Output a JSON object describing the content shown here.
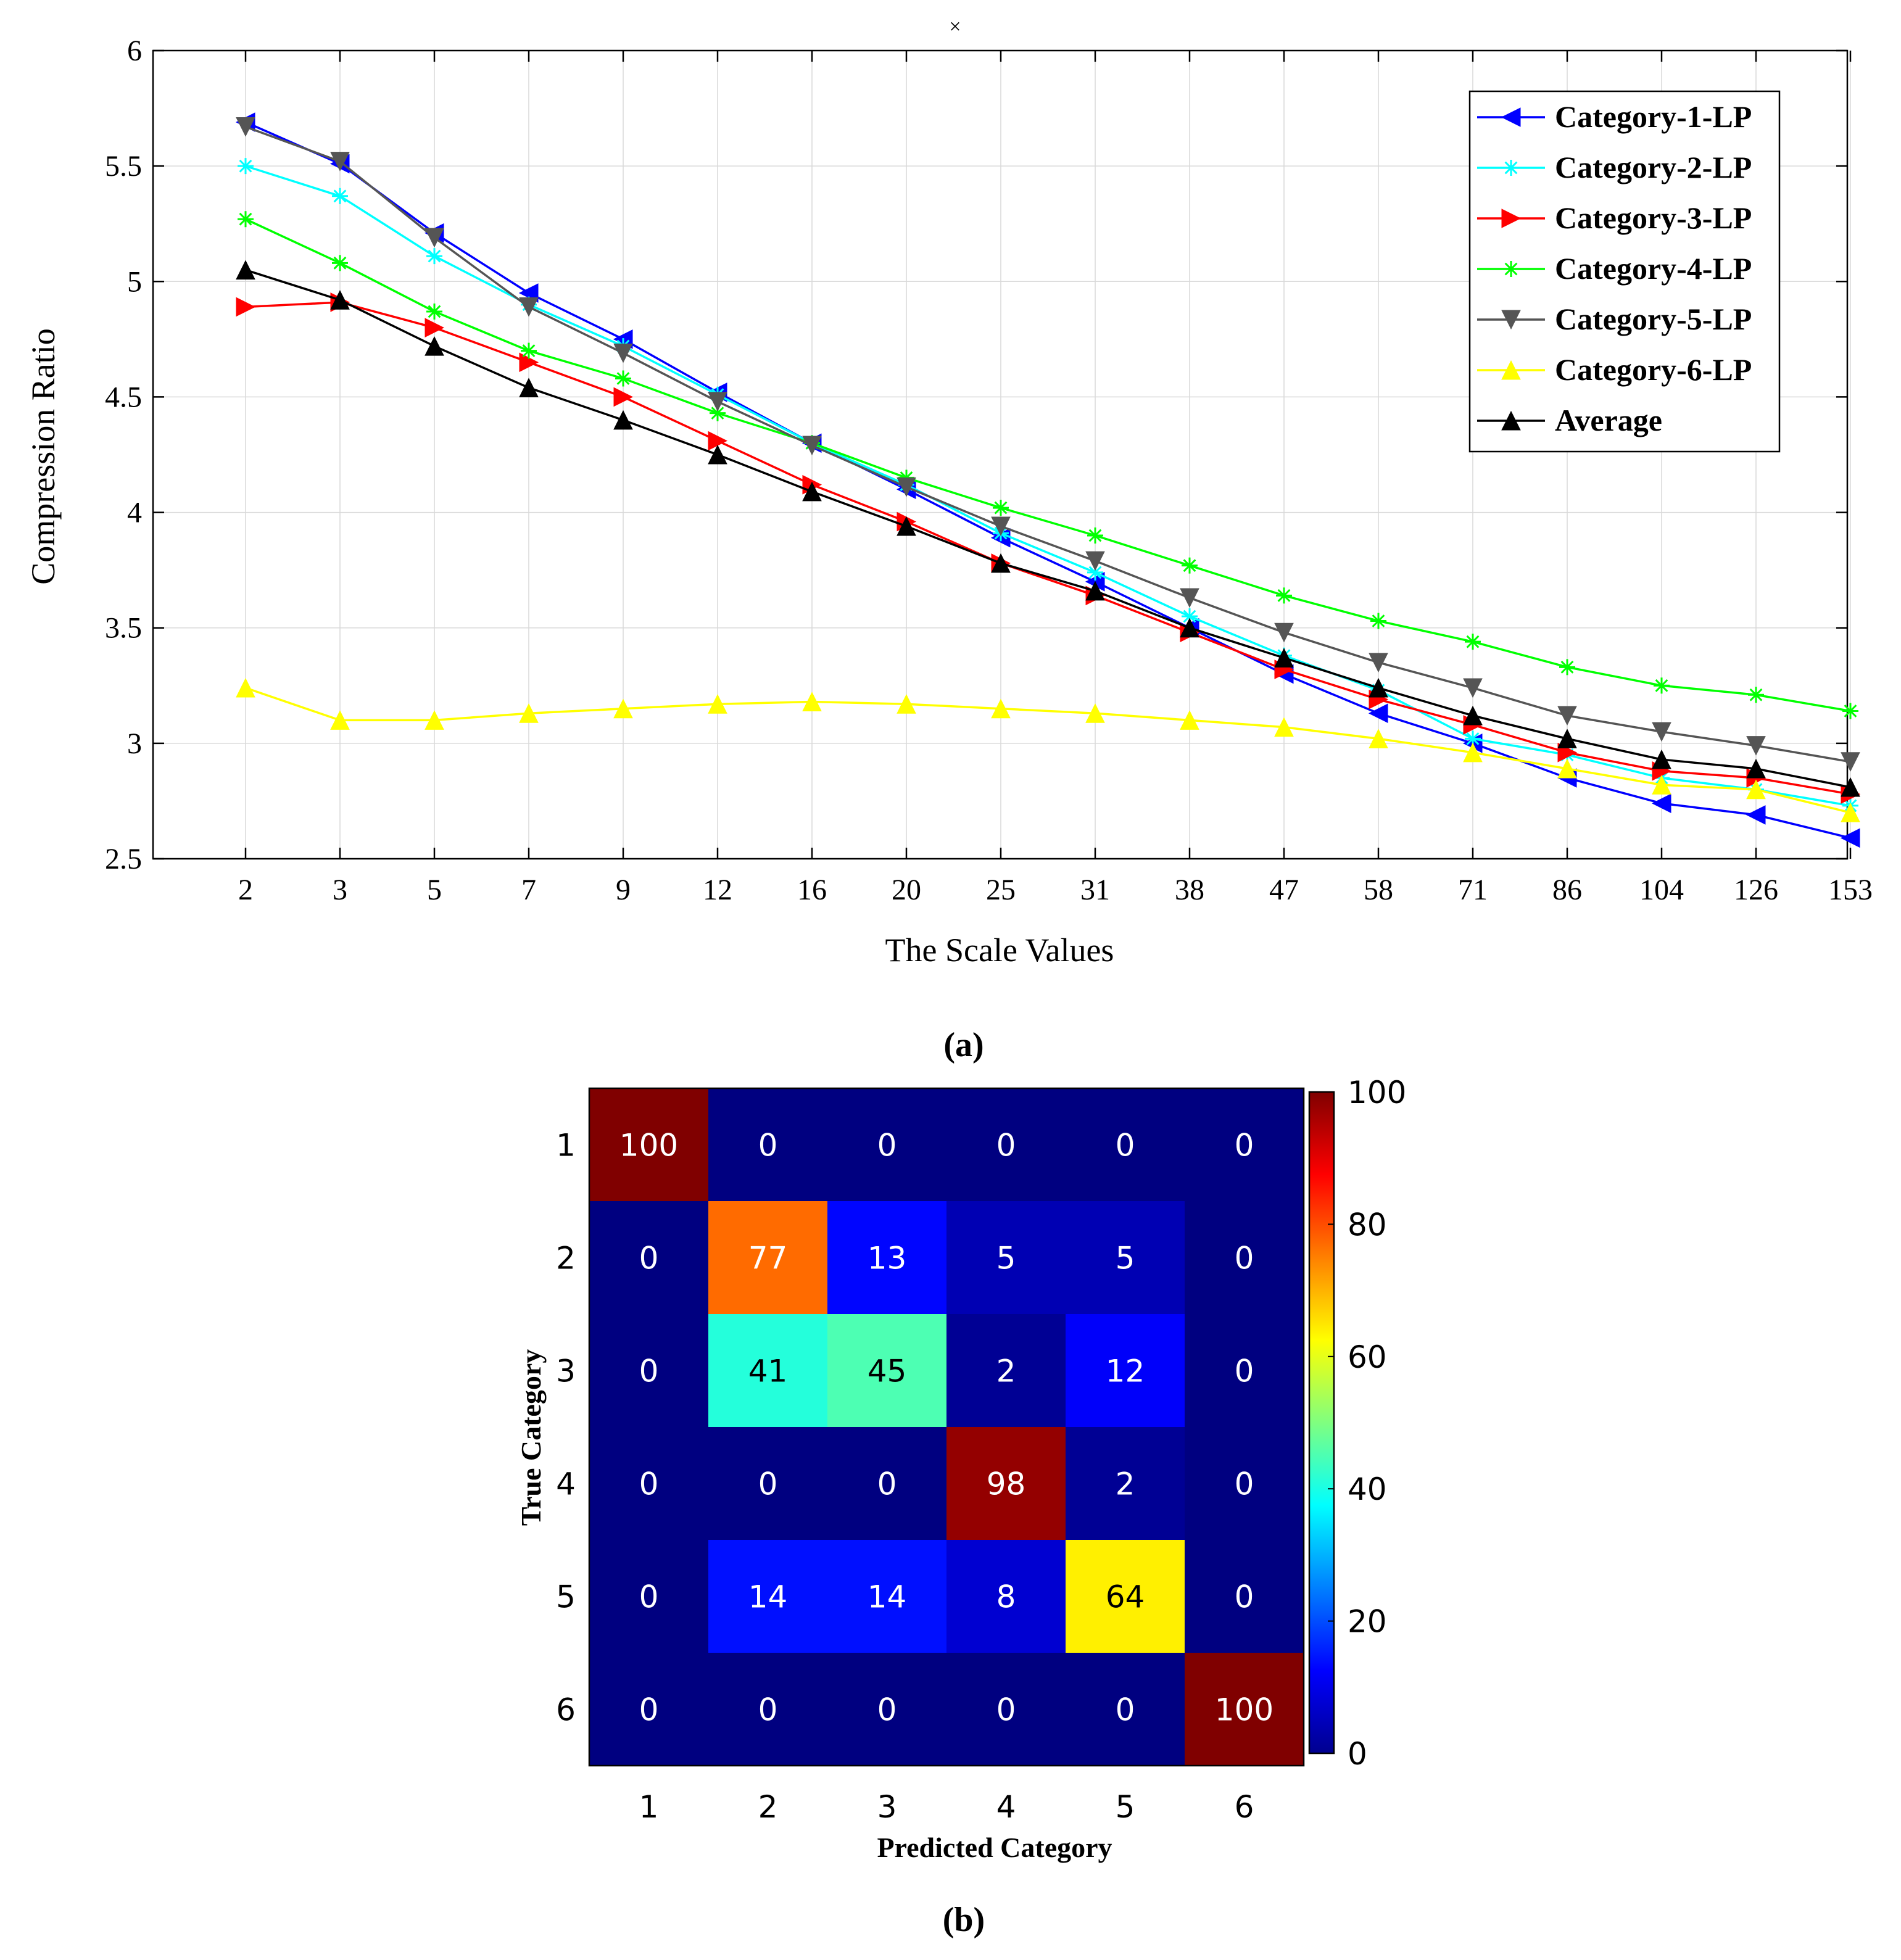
{
  "chart_data": [
    {
      "type": "line",
      "panel_label": "(a)",
      "title_mark": "×",
      "xlabel": "The Scale Values",
      "ylabel": "Compression Ratio",
      "categories": [
        "2",
        "3",
        "5",
        "7",
        "9",
        "12",
        "16",
        "20",
        "25",
        "31",
        "38",
        "47",
        "58",
        "71",
        "86",
        "104",
        "126",
        "153"
      ],
      "ylim": [
        2.5,
        6
      ],
      "yticks": [
        "2.5",
        "3",
        "3.5",
        "4",
        "4.5",
        "5",
        "5.5",
        "6"
      ],
      "grid": true,
      "legend_position": "top-right",
      "series": [
        {
          "name": "Category-1-LP",
          "color": "#0000ff",
          "marker": "triangle-left",
          "values": [
            5.69,
            5.51,
            5.21,
            4.95,
            4.75,
            4.52,
            4.3,
            4.1,
            3.89,
            3.7,
            3.5,
            3.3,
            3.13,
            3.0,
            2.85,
            2.74,
            2.69,
            2.59
          ]
        },
        {
          "name": "Category-2-LP",
          "color": "#00ffff",
          "marker": "star",
          "values": [
            5.5,
            5.37,
            5.11,
            4.9,
            4.72,
            4.51,
            4.3,
            4.12,
            3.91,
            3.74,
            3.55,
            3.38,
            3.23,
            3.02,
            2.95,
            2.85,
            2.8,
            2.73
          ]
        },
        {
          "name": "Category-3-LP",
          "color": "#ff0000",
          "marker": "triangle-right",
          "values": [
            4.89,
            4.91,
            4.8,
            4.65,
            4.5,
            4.31,
            4.12,
            3.96,
            3.78,
            3.64,
            3.48,
            3.32,
            3.19,
            3.08,
            2.96,
            2.88,
            2.85,
            2.78
          ]
        },
        {
          "name": "Category-4-LP",
          "color": "#00ff00",
          "marker": "star",
          "values": [
            5.27,
            5.08,
            4.87,
            4.7,
            4.58,
            4.43,
            4.3,
            4.15,
            4.02,
            3.9,
            3.77,
            3.64,
            3.53,
            3.44,
            3.33,
            3.25,
            3.21,
            3.14
          ]
        },
        {
          "name": "Category-5-LP",
          "color": "#555555",
          "marker": "triangle-down",
          "values": [
            5.67,
            5.52,
            5.19,
            4.89,
            4.69,
            4.48,
            4.29,
            4.11,
            3.94,
            3.79,
            3.63,
            3.48,
            3.35,
            3.24,
            3.12,
            3.05,
            2.99,
            2.92
          ]
        },
        {
          "name": "Category-6-LP",
          "color": "#ffff00",
          "marker": "triangle-up",
          "values": [
            3.24,
            3.1,
            3.1,
            3.13,
            3.15,
            3.17,
            3.18,
            3.17,
            3.15,
            3.13,
            3.1,
            3.07,
            3.02,
            2.96,
            2.89,
            2.82,
            2.8,
            2.7
          ]
        },
        {
          "name": "Average",
          "color": "#000000",
          "marker": "triangle-up",
          "values": [
            5.05,
            4.92,
            4.72,
            4.54,
            4.4,
            4.25,
            4.09,
            3.94,
            3.78,
            3.66,
            3.5,
            3.37,
            3.24,
            3.12,
            3.02,
            2.93,
            2.89,
            2.81
          ]
        }
      ]
    },
    {
      "type": "heatmap",
      "panel_label": "(b)",
      "xlabel": "Predicted Category",
      "ylabel": "True Category",
      "x_categories": [
        "1",
        "2",
        "3",
        "4",
        "5",
        "6"
      ],
      "y_categories": [
        "1",
        "2",
        "3",
        "4",
        "5",
        "6"
      ],
      "values": [
        [
          100,
          0,
          0,
          0,
          0,
          0
        ],
        [
          0,
          77,
          13,
          5,
          5,
          0
        ],
        [
          0,
          41,
          45,
          2,
          12,
          0
        ],
        [
          0,
          0,
          0,
          98,
          2,
          0
        ],
        [
          0,
          14,
          14,
          8,
          64,
          0
        ],
        [
          0,
          0,
          0,
          0,
          0,
          100
        ]
      ],
      "colorbar_range": [
        0,
        100
      ],
      "colorbar_ticks": [
        "0",
        "20",
        "40",
        "60",
        "80",
        "100"
      ],
      "colormap": "jet"
    }
  ]
}
